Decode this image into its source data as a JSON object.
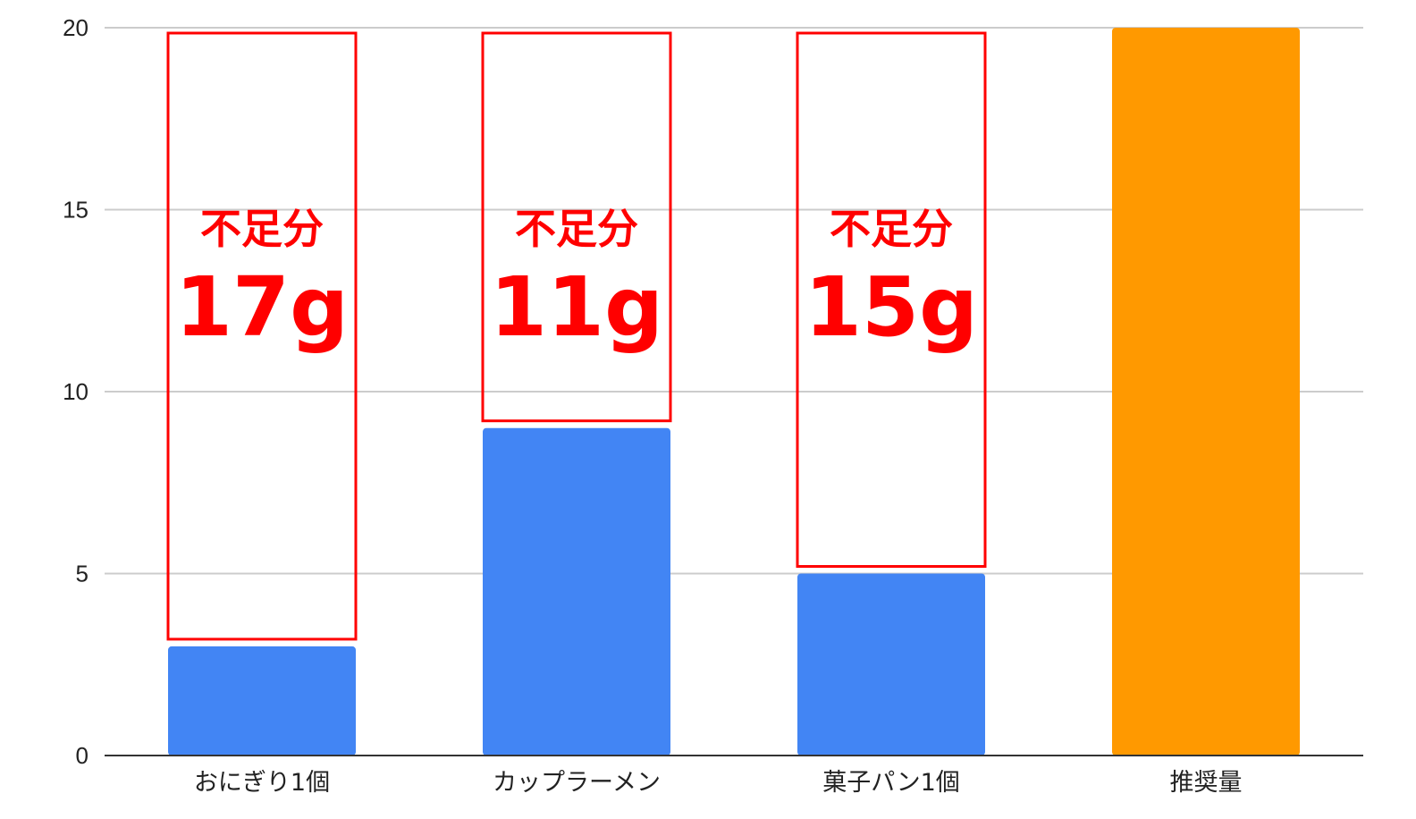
{
  "chart_data": {
    "type": "bar",
    "categories": [
      "おにぎり1個",
      "カップラーメン",
      "菓子パン1個",
      "推奨量"
    ],
    "values": [
      3,
      9,
      5,
      20
    ],
    "bar_colors": [
      "#4285f4",
      "#4285f4",
      "#4285f4",
      "#ff9900"
    ],
    "ylim": [
      0,
      20
    ],
    "yticks": [
      0,
      5,
      10,
      15,
      20
    ],
    "grid": true,
    "annotations": [
      {
        "category": "おにぎり1個",
        "title": "不足分",
        "value_text": "17g",
        "from": 3,
        "to": 20
      },
      {
        "category": "カップラーメン",
        "title": "不足分",
        "value_text": "11g",
        "from": 9,
        "to": 20
      },
      {
        "category": "菓子パン1個",
        "title": "不足分",
        "value_text": "15g",
        "from": 5,
        "to": 20
      }
    ],
    "annotation_color": "#ff0000"
  }
}
